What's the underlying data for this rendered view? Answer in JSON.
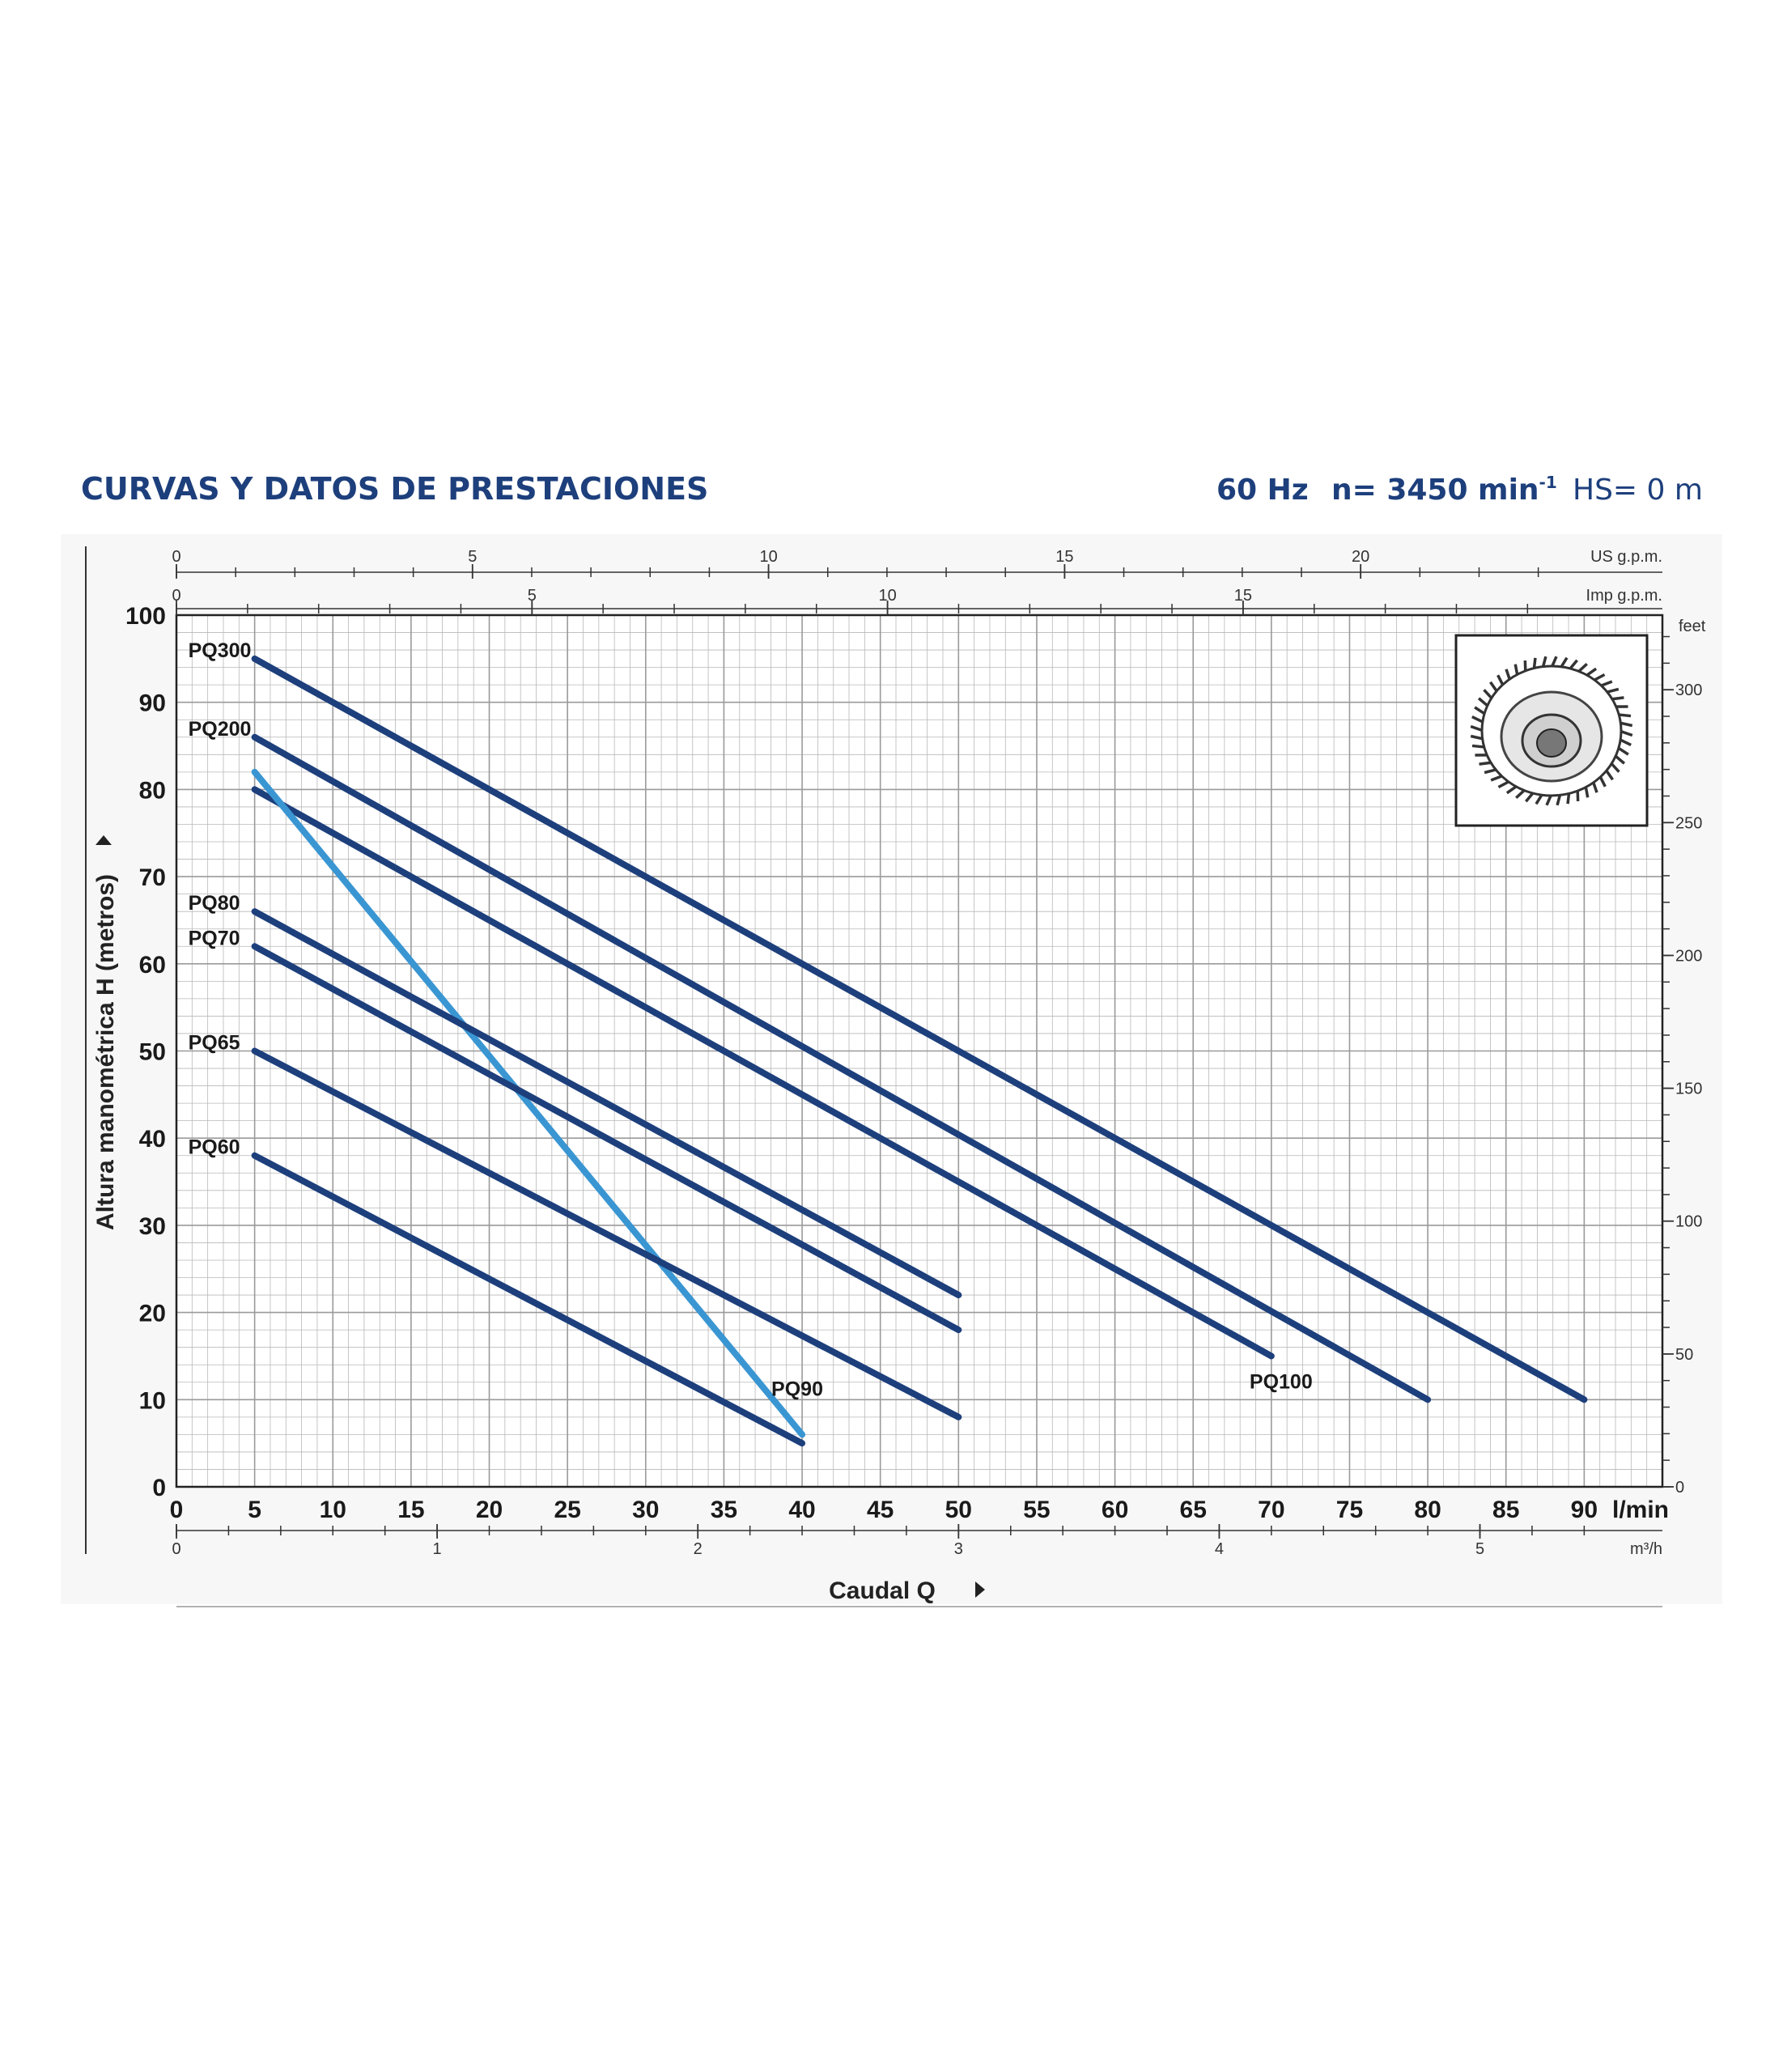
{
  "header": {
    "title": "CURVAS Y DATOS DE PRESTACIONES",
    "frequency": "60 Hz",
    "speed_prefix": "n= 3450 min",
    "speed_exponent": "-1",
    "suction": "HS= 0 m"
  },
  "colors": {
    "primary_curve": "#1d3f7c",
    "pq90_curve": "#3a96d2",
    "grid": "#b8b8b8",
    "header_text": "#1d3f7c"
  },
  "chart_data": {
    "type": "line",
    "title": "",
    "xlabel": "Caudal Q",
    "ylabel": "Altura manométrica H (metros)",
    "xlim": [
      0,
      95
    ],
    "ylim": [
      0,
      100
    ],
    "grid": true,
    "x_unit": "l/min",
    "x_ticks": [
      0,
      5,
      10,
      15,
      20,
      25,
      30,
      35,
      40,
      45,
      50,
      55,
      60,
      65,
      70,
      75,
      80,
      85,
      90
    ],
    "y_ticks": [
      0,
      10,
      20,
      30,
      40,
      50,
      60,
      70,
      80,
      90,
      100
    ],
    "secondary_axes": {
      "us_gpm": {
        "unit": "US g.p.m.",
        "ticks": [
          0,
          5,
          10,
          15,
          20
        ]
      },
      "imp_gpm": {
        "unit": "Imp g.p.m.",
        "ticks": [
          0,
          5,
          10,
          15
        ]
      },
      "m3h": {
        "unit": "m³/h",
        "ticks": [
          0,
          1,
          2,
          3,
          4,
          5
        ]
      },
      "feet": {
        "unit": "feet",
        "ticks": [
          0,
          50,
          100,
          150,
          200,
          250,
          300
        ]
      }
    },
    "series": [
      {
        "name": "PQ300",
        "x": [
          5,
          90
        ],
        "y": [
          95,
          10
        ]
      },
      {
        "name": "PQ200",
        "x": [
          5,
          80
        ],
        "y": [
          86,
          10
        ]
      },
      {
        "name": "PQ100",
        "x": [
          5,
          70
        ],
        "y": [
          80,
          15
        ]
      },
      {
        "name": "PQ90",
        "x": [
          5,
          40
        ],
        "y": [
          82,
          6
        ],
        "highlight": true
      },
      {
        "name": "PQ80",
        "x": [
          5,
          50
        ],
        "y": [
          66,
          22
        ]
      },
      {
        "name": "PQ70",
        "x": [
          5,
          50
        ],
        "y": [
          62,
          18
        ]
      },
      {
        "name": "PQ65",
        "x": [
          5,
          50
        ],
        "y": [
          50,
          8
        ]
      },
      {
        "name": "PQ60",
        "x": [
          5,
          40
        ],
        "y": [
          38,
          5
        ]
      }
    ]
  }
}
